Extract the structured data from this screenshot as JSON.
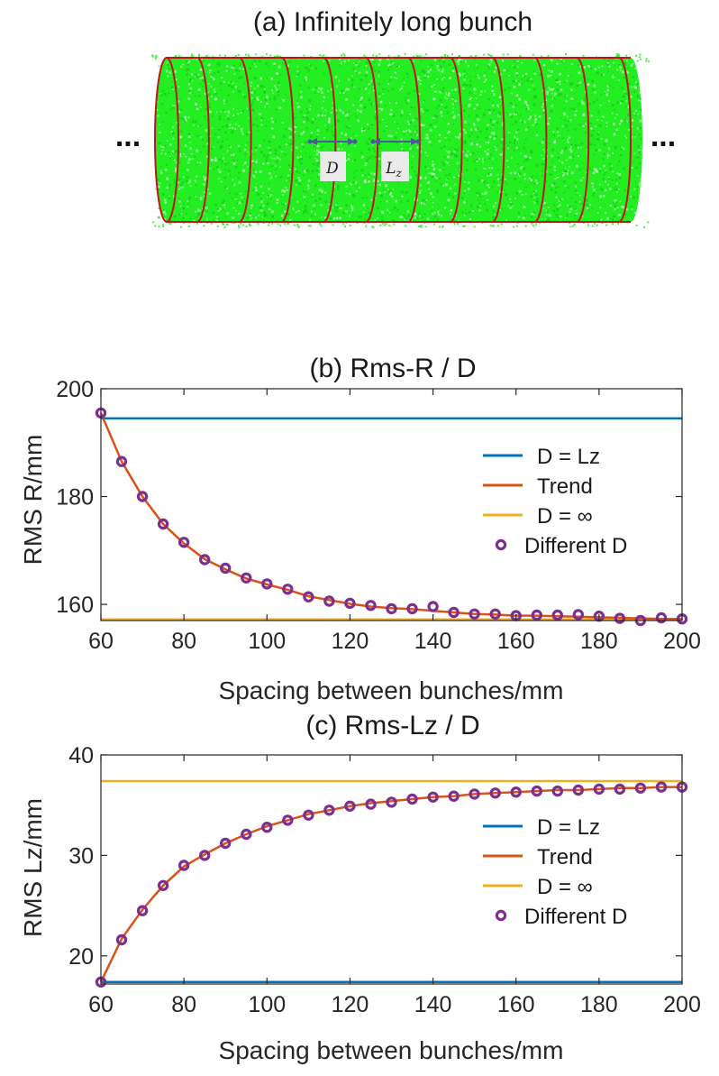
{
  "bunch": {
    "title": "(a) Infinitely long bunch",
    "left_ellipsis": "...",
    "right_ellipsis": "...",
    "label_d": "D",
    "label_lz_base": "L",
    "label_lz_sub": "z",
    "colors": {
      "fill": "#22ee22",
      "ring": "#c0141a",
      "arrow": "#4a5a9a"
    },
    "ring_count": 11
  },
  "chart_data": [
    {
      "type": "line",
      "title": "(b) Rms-R / D",
      "xlabel": "Spacing between bunches/mm",
      "ylabel": "RMS R/mm",
      "xlim": [
        60,
        200
      ],
      "ylim": [
        157,
        200
      ],
      "x_ticks": [
        60,
        80,
        100,
        120,
        140,
        160,
        180,
        200
      ],
      "y_ticks": [
        160,
        180,
        200
      ],
      "grid": false,
      "legend_position": "right",
      "series": [
        {
          "name": "D = Lz",
          "kind": "hline",
          "color": "#0072bd",
          "value": 194.5
        },
        {
          "name": "Trend",
          "kind": "line",
          "color": "#d95319",
          "x": [
            60,
            65,
            70,
            75,
            80,
            85,
            90,
            95,
            100,
            105,
            110,
            115,
            120,
            125,
            130,
            135,
            140,
            145,
            150,
            155,
            160,
            165,
            170,
            175,
            180,
            185,
            190,
            195,
            200
          ],
          "y": [
            195.5,
            186.5,
            180.0,
            174.9,
            171.3,
            168.4,
            166.5,
            164.8,
            163.7,
            162.7,
            161.5,
            160.8,
            160.1,
            159.6,
            159.3,
            159.1,
            158.8,
            158.5,
            158.2,
            158.1,
            157.9,
            157.9,
            157.8,
            157.7,
            157.6,
            157.5,
            157.4,
            157.3,
            157.3
          ]
        },
        {
          "name": "D = ∞",
          "kind": "hline",
          "color": "#edb120",
          "value": 157.2
        },
        {
          "name": "Different D",
          "kind": "scatter",
          "color": "#7e2f8e",
          "x": [
            60,
            65,
            70,
            75,
            80,
            85,
            90,
            95,
            100,
            105,
            110,
            115,
            120,
            125,
            130,
            135,
            140,
            145,
            150,
            155,
            160,
            165,
            170,
            175,
            180,
            185,
            190,
            195,
            200
          ],
          "y": [
            195.5,
            186.5,
            180.0,
            174.9,
            171.5,
            168.3,
            166.7,
            164.9,
            163.8,
            162.8,
            161.4,
            160.6,
            160.2,
            159.8,
            159.2,
            159.2,
            159.6,
            158.5,
            158.2,
            158.2,
            157.9,
            158.0,
            158.0,
            158.1,
            157.8,
            157.4,
            157.0,
            157.5,
            157.3
          ]
        }
      ]
    },
    {
      "type": "line",
      "title": "(c) Rms-Lz / D",
      "xlabel": "Spacing between bunches/mm",
      "ylabel": "RMS Lz/mm",
      "xlim": [
        60,
        200
      ],
      "ylim": [
        17.2,
        40
      ],
      "x_ticks": [
        60,
        80,
        100,
        120,
        140,
        160,
        180,
        200
      ],
      "y_ticks": [
        20,
        30,
        40
      ],
      "grid": false,
      "legend_position": "right",
      "series": [
        {
          "name": "D = Lz",
          "kind": "hline",
          "color": "#0072bd",
          "value": 17.4
        },
        {
          "name": "Trend",
          "kind": "line",
          "color": "#d95319",
          "x": [
            60,
            65,
            70,
            75,
            80,
            85,
            90,
            95,
            100,
            105,
            110,
            115,
            120,
            125,
            130,
            135,
            140,
            145,
            150,
            155,
            160,
            165,
            170,
            175,
            180,
            185,
            190,
            195,
            200
          ],
          "y": [
            17.4,
            21.7,
            24.6,
            27.0,
            28.9,
            30.1,
            31.2,
            32.1,
            32.9,
            33.5,
            34.1,
            34.5,
            34.9,
            35.2,
            35.4,
            35.6,
            35.8,
            35.9,
            36.1,
            36.2,
            36.3,
            36.4,
            36.5,
            36.5,
            36.6,
            36.7,
            36.7,
            36.8,
            36.8
          ]
        },
        {
          "name": "D = ∞",
          "kind": "hline",
          "color": "#edb120",
          "value": 37.4
        },
        {
          "name": "Different D",
          "kind": "scatter",
          "color": "#7e2f8e",
          "x": [
            60,
            65,
            70,
            75,
            80,
            85,
            90,
            95,
            100,
            105,
            110,
            115,
            120,
            125,
            130,
            135,
            140,
            145,
            150,
            155,
            160,
            165,
            170,
            175,
            180,
            185,
            190,
            195,
            200
          ],
          "y": [
            17.4,
            21.6,
            24.5,
            27.0,
            29.0,
            30.0,
            31.2,
            32.1,
            32.8,
            33.5,
            34.0,
            34.5,
            34.9,
            35.1,
            35.3,
            35.6,
            35.8,
            35.9,
            36.1,
            36.2,
            36.3,
            36.4,
            36.4,
            36.5,
            36.6,
            36.6,
            36.7,
            36.8,
            36.8
          ]
        }
      ]
    }
  ]
}
